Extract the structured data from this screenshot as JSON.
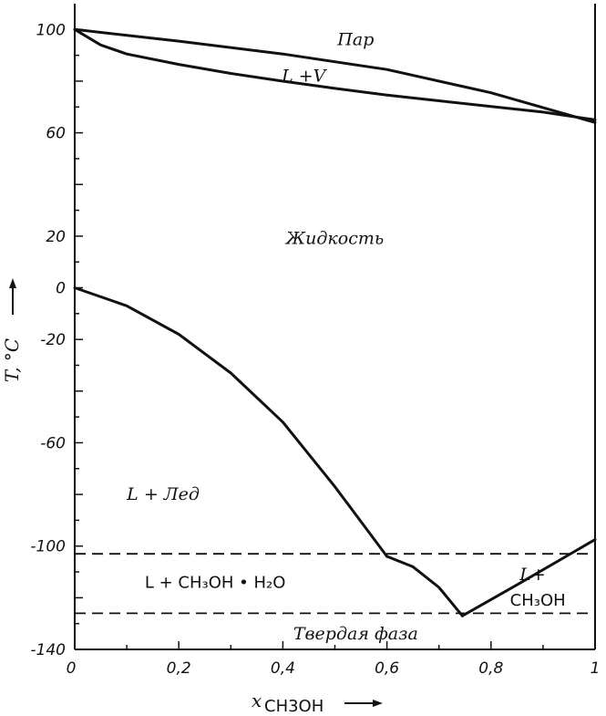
{
  "chart_data": {
    "type": "line",
    "title": "",
    "xlabel": "x",
    "xlabel_sub": "CH3OH",
    "ylabel": "T, °C",
    "xlim": [
      0,
      1
    ],
    "ylim": [
      -140,
      110
    ],
    "x_ticks": [
      "0",
      "0,2",
      "0,4",
      "0,6",
      "0,8",
      "1"
    ],
    "y_ticks": [
      "100",
      "60",
      "20",
      "0",
      "-20",
      "-60",
      "-100",
      "-140"
    ],
    "grid": false,
    "series": [
      {
        "style": "solid",
        "x": [
          0,
          0.2,
          0.4,
          0.6,
          0.8,
          1.0
        ],
        "y": [
          100,
          95.5,
          90.5,
          84.5,
          75.5,
          64
        ]
      },
      {
        "style": "solid",
        "x": [
          0,
          0.05,
          0.1,
          0.2,
          0.3,
          0.4,
          0.5,
          0.6,
          0.7,
          0.8,
          0.9,
          1.0
        ],
        "y": [
          100,
          94,
          90.5,
          86.5,
          83,
          80,
          77.2,
          74.6,
          72.4,
          70.2,
          68,
          65
        ]
      },
      {
        "style": "solid",
        "x": [
          0,
          0.1,
          0.2,
          0.3,
          0.4,
          0.5,
          0.6
        ],
        "y": [
          0,
          -7,
          -18,
          -33,
          -52,
          -77,
          -104
        ]
      },
      {
        "style": "solid",
        "x": [
          0.6,
          0.65,
          0.7,
          0.745
        ],
        "y": [
          -104,
          -108,
          -116,
          -127
        ]
      },
      {
        "style": "solid",
        "x": [
          0.745,
          0.85,
          1.0
        ],
        "y": [
          -127,
          -115,
          -97.5
        ]
      },
      {
        "style": "dashed",
        "x": [
          0,
          1.0
        ],
        "y": [
          -103,
          -103
        ]
      },
      {
        "style": "dashed",
        "x": [
          0,
          1.0
        ],
        "y": [
          -126,
          -126
        ]
      }
    ],
    "annotations": [
      {
        "text": "Пар",
        "x": 0.54,
        "y": 96
      },
      {
        "text": "L +V",
        "x": 0.44,
        "y": 82
      },
      {
        "text": "Жидкость",
        "x": 0.5,
        "y": 19
      },
      {
        "text": "L + Лед",
        "x": 0.17,
        "y": -80
      },
      {
        "text": "L  + CH₃OH • H₂O",
        "x": 0.27,
        "y": -114
      },
      {
        "text": "Твердая фаза",
        "x": 0.54,
        "y": -134
      },
      {
        "text": "L+",
        "x": 0.88,
        "y": -111
      },
      {
        "text": "CH₃OH",
        "x": 0.89,
        "y": -121
      }
    ]
  }
}
